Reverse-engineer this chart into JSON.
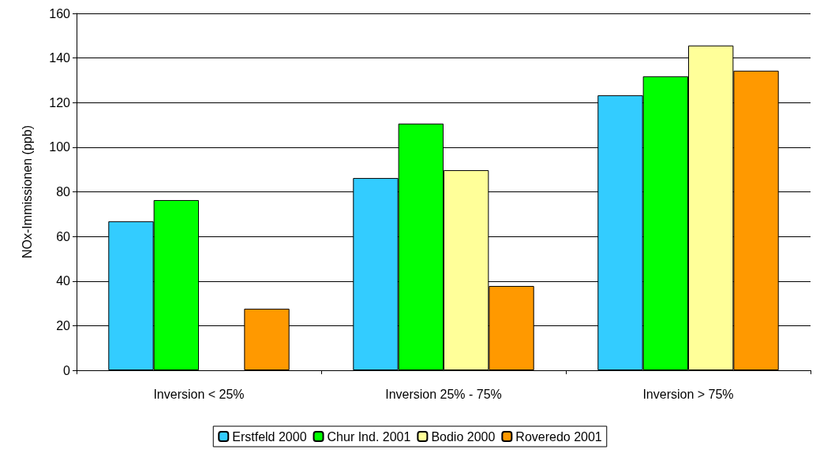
{
  "chart_data": {
    "type": "bar",
    "ylabel": "NOx-Immissionen (ppb)",
    "categories": [
      "Inversion < 25%",
      "Inversion 25% - 75%",
      "Inversion > 75%"
    ],
    "series": [
      {
        "name": "Erstfeld 2000",
        "color": "#33ccff",
        "values": [
          66.8,
          86.2,
          123.3
        ]
      },
      {
        "name": "Chur Ind. 2001",
        "color": "#00ff00",
        "values": [
          76.3,
          110.6,
          131.8
        ]
      },
      {
        "name": "Bodio 2000",
        "color": "#ffff99",
        "values": [
          null,
          89.7,
          145.6
        ]
      },
      {
        "name": "Roveredo 2001",
        "color": "#ff9900",
        "values": [
          27.6,
          37.8,
          134.3
        ]
      }
    ],
    "ylim": [
      0,
      160
    ],
    "yticks": [
      0,
      20,
      40,
      60,
      80,
      100,
      120,
      140,
      160
    ],
    "grid": "y",
    "legend": "bottom"
  }
}
